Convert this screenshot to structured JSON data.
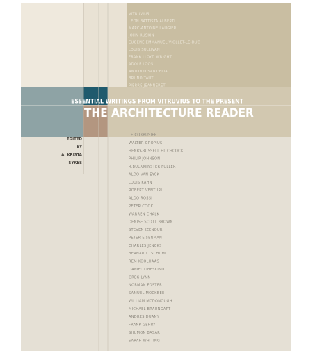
{
  "cover": {
    "subtitle": "ESSENTIAL WRITINGS FROM VITRUVIUS TO THE PRESENT",
    "title": "THE ARCHITECTURE READER",
    "editor_lines": [
      "EDITED",
      "BY",
      "A. KRISTA",
      "SYKES"
    ],
    "names_top": [
      "VITRUVIUS",
      "LEON BATTISTA ALBERTI",
      "MARC-ANTOINE LAUGIER",
      "JOHN RUSKIN",
      "EUGÈNE EMMANUEL VIOLLET-LE-DUC",
      "LOUIS SULLIVAN",
      "FRANK LLOYD WRIGHT",
      "ADOLF LOOS",
      "ANTONIO SANT'ELIA",
      "BRUNO TAUT",
      "PIERRE JEANNERET"
    ],
    "names_bottom": [
      "LE CORBUSIER",
      "WALTER GROPIUS",
      "HENRY-RUSSELL HITCHCOCK",
      "PHILIP JOHNSON",
      "R.BUCKMINSTER FULLER",
      "ALDO VAN EYCK",
      "LOUIS KAHN",
      "ROBERT VENTURI",
      "ALDO ROSSI",
      "PETER COOK",
      "WARREN CHALK",
      "DENISE SCOTT BROWN",
      "STEVEN IZENOUR",
      "PETER EISENMAN",
      "CHARLES JENCKS",
      "BERNARD TSCHUMI",
      "REM KOOLHAAS",
      "DANIEL LIBESKIND",
      "GREG LYNN",
      "NORMAN FOSTER",
      "SAMUEL MOCKBEE",
      "WILLIAM MCDONOUGH",
      "MICHAEL BRAUNGART",
      "ANDRÉS DUANY",
      "FRANK GEHRY",
      "SHUMON BASAR",
      "SARAH WHITING"
    ]
  }
}
